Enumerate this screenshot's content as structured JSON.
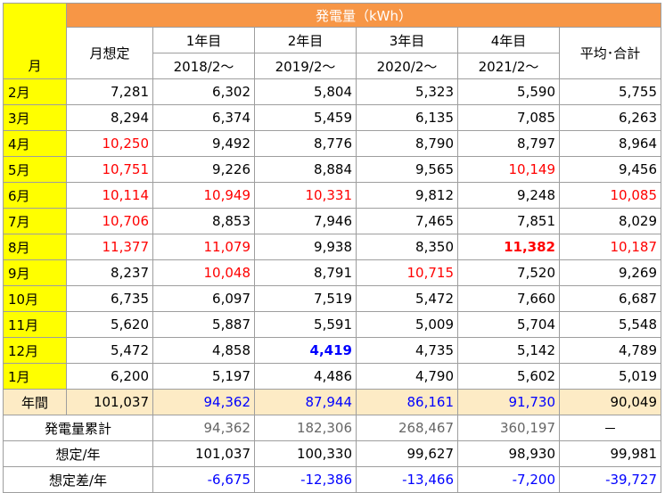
{
  "header": {
    "month_label": "月",
    "title": "発電量（kWh）",
    "plan_label": "月想定",
    "years": [
      {
        "label": "1年目",
        "start": "2018/2～"
      },
      {
        "label": "2年目",
        "start": "2019/2～"
      },
      {
        "label": "3年目",
        "start": "2020/2～"
      },
      {
        "label": "4年目",
        "start": "2021/2～"
      }
    ],
    "avg_label": "平均･合計"
  },
  "rows": [
    {
      "month": "2月",
      "cells": [
        "7,281",
        "6,302",
        "5,804",
        "5,323",
        "5,590",
        "5,755"
      ]
    },
    {
      "month": "3月",
      "cells": [
        "8,294",
        "6,374",
        "5,459",
        "6,135",
        "7,085",
        "6,263"
      ]
    },
    {
      "month": "4月",
      "cells": [
        "10,250",
        "9,492",
        "8,776",
        "8,790",
        "8,797",
        "8,964"
      ]
    },
    {
      "month": "5月",
      "cells": [
        "10,751",
        "9,226",
        "8,884",
        "9,565",
        "10,149",
        "9,456"
      ]
    },
    {
      "month": "6月",
      "cells": [
        "10,114",
        "10,949",
        "10,331",
        "9,812",
        "9,248",
        "10,085"
      ]
    },
    {
      "month": "7月",
      "cells": [
        "10,706",
        "8,853",
        "7,946",
        "7,465",
        "7,851",
        "8,029"
      ]
    },
    {
      "month": "8月",
      "cells": [
        "11,377",
        "11,079",
        "9,938",
        "8,350",
        "11,382",
        "10,187"
      ]
    },
    {
      "month": "9月",
      "cells": [
        "8,237",
        "10,048",
        "8,791",
        "10,715",
        "7,520",
        "9,269"
      ]
    },
    {
      "month": "10月",
      "cells": [
        "6,735",
        "6,097",
        "7,519",
        "5,472",
        "7,660",
        "6,687"
      ]
    },
    {
      "month": "11月",
      "cells": [
        "5,620",
        "5,887",
        "5,591",
        "5,009",
        "5,704",
        "5,548"
      ]
    },
    {
      "month": "12月",
      "cells": [
        "5,472",
        "4,858",
        "4,419",
        "4,735",
        "5,142",
        "4,789"
      ]
    },
    {
      "month": "1月",
      "cells": [
        "6,200",
        "5,197",
        "4,486",
        "4,790",
        "5,602",
        "5,019"
      ]
    }
  ],
  "annual": {
    "label": "年間",
    "cells": [
      "101,037",
      "94,362",
      "87,944",
      "86,161",
      "91,730",
      "90,049"
    ]
  },
  "cumulative": {
    "label": "発電量累計",
    "cells": [
      "94,362",
      "182,306",
      "268,467",
      "360,197",
      "－"
    ]
  },
  "plan_per_year": {
    "label": "想定/年",
    "cells": [
      "101,037",
      "100,330",
      "99,627",
      "98,930",
      "99,981"
    ]
  },
  "diff_per_year": {
    "label": "想定差/年",
    "cells": [
      "-6,675",
      "-12,386",
      "-13,466",
      "-7,200",
      "-39,727"
    ]
  },
  "colors": {
    "title_bg": "#f79646",
    "month_bg": "#ffff00",
    "annual_bg": "#fdebc5",
    "highlight_red": "#ff0000",
    "highlight_blue": "#0000ff"
  }
}
